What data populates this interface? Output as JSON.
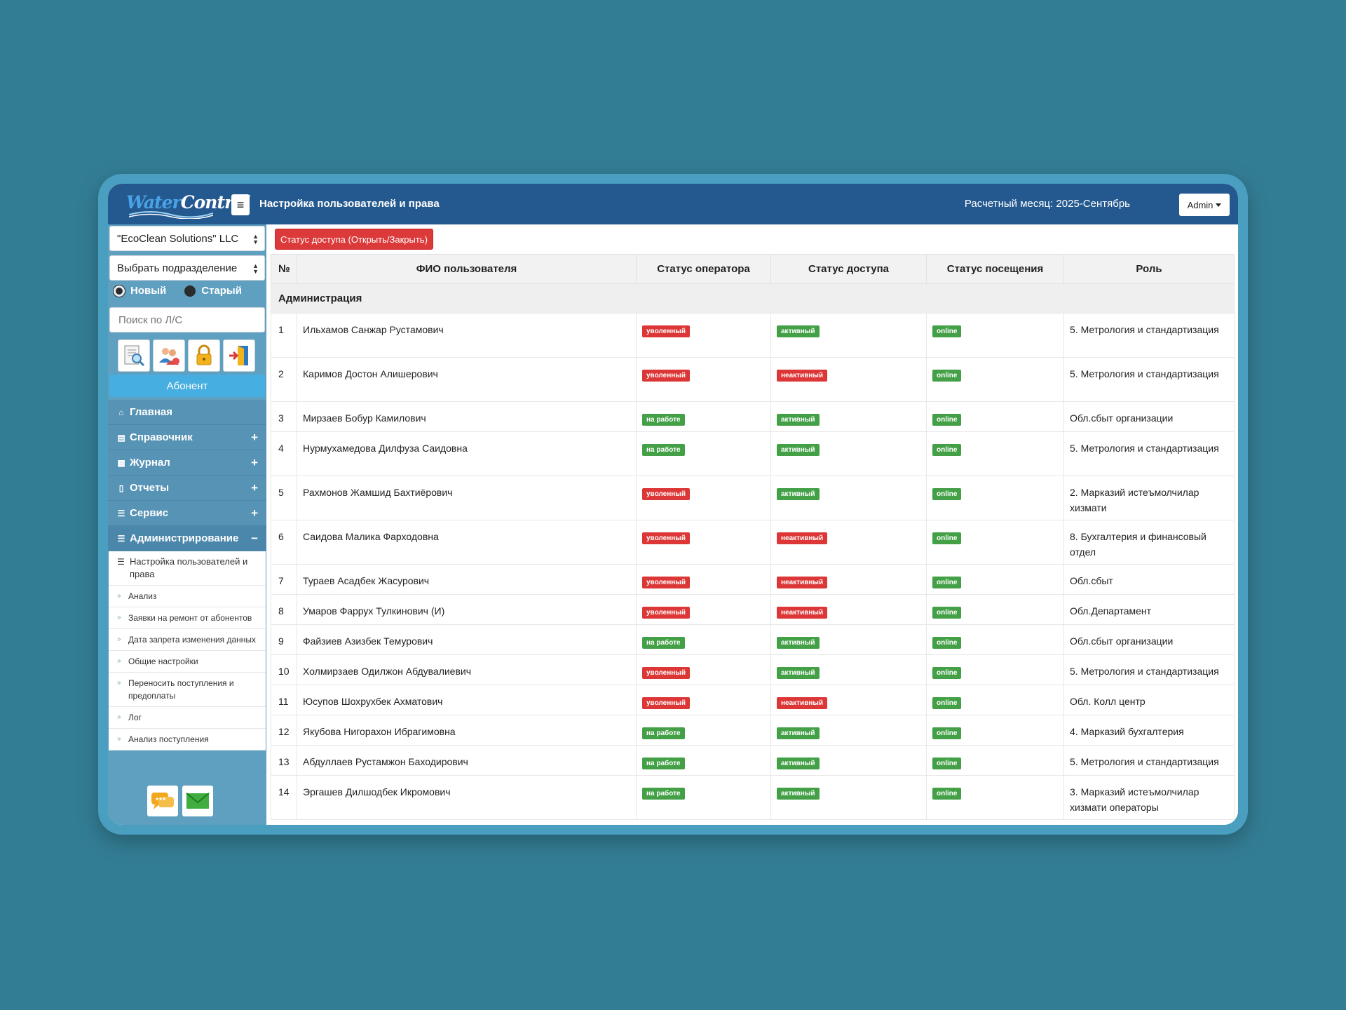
{
  "header": {
    "logo_water": "Water",
    "logo_control": "Control",
    "title": "Настройка пользователей и права",
    "month": "Расчетный месяц: 2025-Сентябрь",
    "admin": "Admin"
  },
  "sidebar": {
    "company": "\"EcoClean Solutions\" LLC",
    "department": "Выбрать подразделение",
    "radio_new": "Новый",
    "radio_old": "Старый",
    "search_placeholder": "Поиск по Л/С",
    "abonent": "Абонент",
    "nav": [
      {
        "label": "Главная",
        "icon": "home-icon"
      },
      {
        "label": "Справочник",
        "icon": "list-icon"
      },
      {
        "label": "Журнал",
        "icon": "journal-icon"
      },
      {
        "label": "Отчеты",
        "icon": "file-icon"
      },
      {
        "label": "Сервис",
        "icon": "sliders-icon"
      },
      {
        "label": "Администрирование",
        "icon": "sliders-icon"
      }
    ],
    "submenu": [
      "Настройка пользователей и права",
      "Анализ",
      "Заявки на ремонт от абонентов",
      "Дата запрета изменения данных",
      "Общие настройки",
      "Переносить поступления и предоплаты",
      "Лог",
      "Анализ поступления"
    ]
  },
  "content": {
    "access_button": "Статус доступа (Открыть/Закрыть)",
    "columns": [
      "№",
      "ФИО пользователя",
      "Статус оператора",
      "Статус доступа",
      "Статус посещения",
      "Роль"
    ],
    "group": "Администрация",
    "rows": [
      {
        "n": "1",
        "name": "Ильхамов Санжар Рустамович",
        "op": "уволенный",
        "acc": "активный",
        "visit": "online",
        "role": "5. Метрология и стандартизация"
      },
      {
        "n": "2",
        "name": "Каримов Достон Алишерович",
        "op": "уволенный",
        "acc": "неактивный",
        "visit": "online",
        "role": "5. Метрология и стандартизация"
      },
      {
        "n": "3",
        "name": "Мирзаев Бобур Камилович",
        "op": "на работе",
        "acc": "активный",
        "visit": "online",
        "role": "Обл.сбыт организации"
      },
      {
        "n": "4",
        "name": "Нурмухамедова Дилфуза Саидовна",
        "op": "на работе",
        "acc": "активный",
        "visit": "online",
        "role": "5. Метрология и стандартизация"
      },
      {
        "n": "5",
        "name": "Рахмонов Жамшид Бахтиёрович",
        "op": "уволенный",
        "acc": "активный",
        "visit": "online",
        "role": "2. Марказий истеъмолчилар хизмати"
      },
      {
        "n": "6",
        "name": "Саидова Малика Фарходовна",
        "op": "уволенный",
        "acc": "неактивный",
        "visit": "online",
        "role": "8. Бухгалтерия и финансовый отдел"
      },
      {
        "n": "7",
        "name": "Тураев Асадбек Жасурович",
        "op": "уволенный",
        "acc": "неактивный",
        "visit": "online",
        "role": "Обл.сбыт"
      },
      {
        "n": "8",
        "name": "Умаров Фаррух Тулкинович (И)",
        "op": "уволенный",
        "acc": "неактивный",
        "visit": "online",
        "role": "Обл.Департамент"
      },
      {
        "n": "9",
        "name": "Файзиев Азизбек Темурович",
        "op": "на работе",
        "acc": "активный",
        "visit": "online",
        "role": "Обл.сбыт организации"
      },
      {
        "n": "10",
        "name": "Холмирзаев Одилжон Абдувалиевич",
        "op": "уволенный",
        "acc": "активный",
        "visit": "online",
        "role": "5. Метрология и стандартизация"
      },
      {
        "n": "11",
        "name": "Юсупов Шохрухбек Ахматович",
        "op": "уволенный",
        "acc": "неактивный",
        "visit": "online",
        "role": "Обл. Колл центр"
      },
      {
        "n": "12",
        "name": "Якубова Нигорахон Ибрагимовна",
        "op": "на работе",
        "acc": "активный",
        "visit": "online",
        "role": "4. Марказий бухгалтерия"
      },
      {
        "n": "13",
        "name": "Абдуллаев Рустамжон Баходирович",
        "op": "на работе",
        "acc": "активный",
        "visit": "online",
        "role": "5. Метрология и стандартизация"
      },
      {
        "n": "14",
        "name": "Эргашев Дилшодбек Икромович",
        "op": "на работе",
        "acc": "активный",
        "visit": "online",
        "role": "3. Марказий истеъмолчилар хизмати операторы"
      }
    ]
  }
}
